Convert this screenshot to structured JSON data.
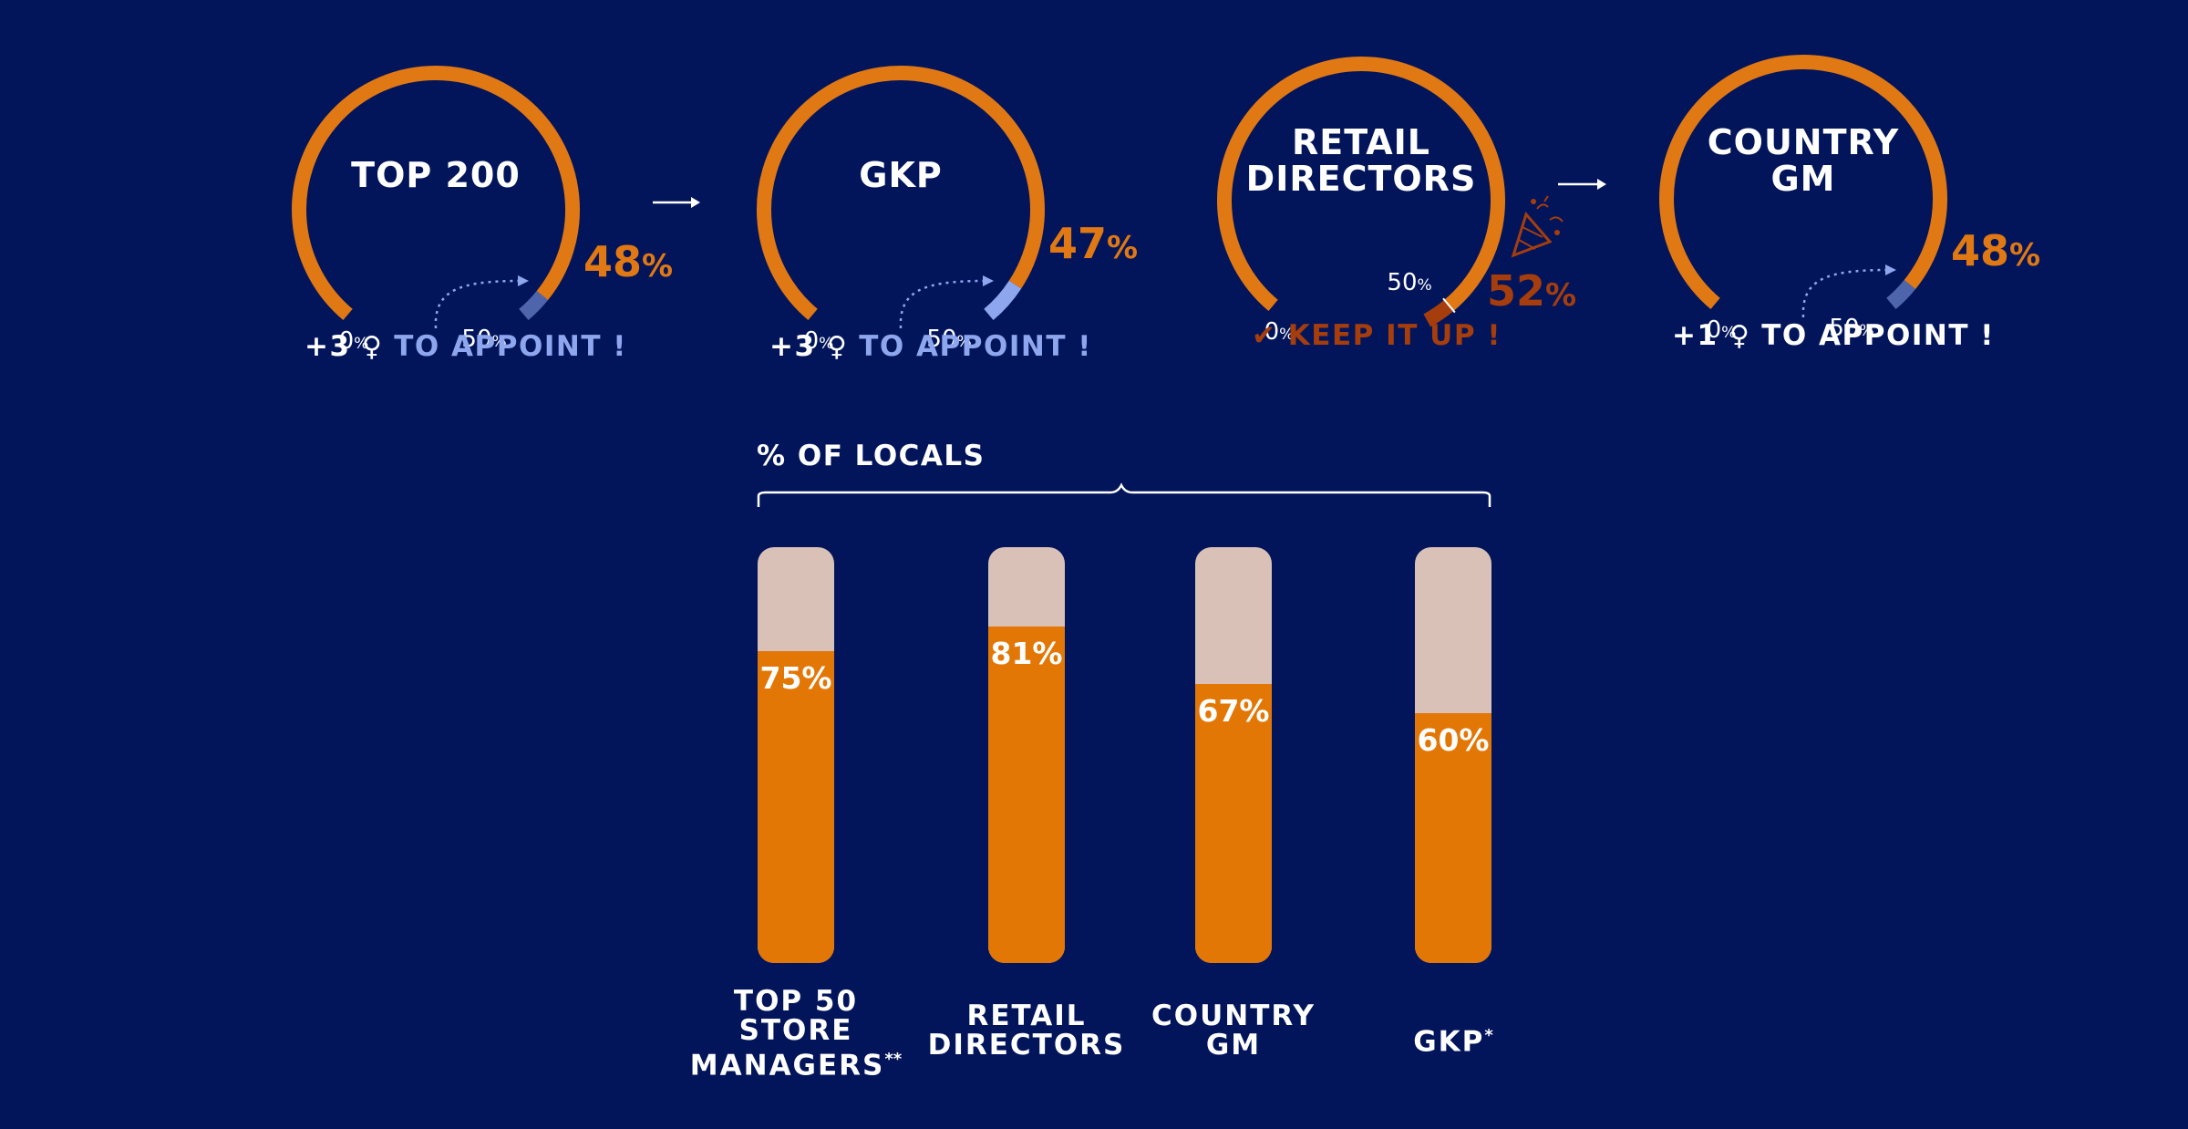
{
  "colors": {
    "background": "#02155a",
    "gauge_orange": "#e07814",
    "gauge_blue": "#8ea6ee",
    "gauge_dark_orange": "#a53d0d",
    "bar_fill": "#e37706",
    "bar_track": "#d9c1b8",
    "white": "#ffffff"
  },
  "gauges": [
    {
      "title_lines": [
        "TOP 200"
      ],
      "value": 48,
      "value_text": "48",
      "zero_label": "0",
      "half_label": "50",
      "action": {
        "prefix": "+3",
        "text": "TO APPOINT !",
        "color": "#8ea6ee"
      },
      "status": "below-target"
    },
    {
      "title_lines": [
        "GKP"
      ],
      "value": 47,
      "value_text": "47",
      "zero_label": "0",
      "half_label": "50",
      "action": {
        "prefix": "+3",
        "text": "TO APPOINT !",
        "color": "#8ea6ee"
      },
      "status": "below-target"
    },
    {
      "title_lines": [
        "RETAIL",
        "DIRECTORS"
      ],
      "value": 52,
      "value_text": "52",
      "zero_label": "0",
      "half_label": "50",
      "action": {
        "prefix": "",
        "text": "KEEP IT UP !",
        "color": "#a53d0d"
      },
      "status": "above-target"
    },
    {
      "title_lines": [
        "COUNTRY",
        "GM"
      ],
      "value": 48,
      "value_text": "48",
      "zero_label": "0",
      "half_label": "50",
      "action": {
        "prefix": "+1",
        "text": "TO APPOINT !",
        "color": "#ffffff"
      },
      "status": "below-target"
    }
  ],
  "symbols": {
    "percent": "%",
    "female": "♀",
    "check": "✔"
  },
  "locals_title": "% OF LOCALS",
  "chart_data": {
    "type": "bar",
    "title": "% OF LOCALS",
    "categories": [
      "TOP 50 STORE MANAGERS**",
      "RETAIL DIRECTORS",
      "COUNTRY GM",
      "GKP*"
    ],
    "category_lines": [
      [
        "TOP 50",
        "STORE",
        "MANAGERS"
      ],
      [
        "RETAIL",
        "DIRECTORS"
      ],
      [
        "COUNTRY",
        "GM"
      ],
      [
        "GKP"
      ]
    ],
    "category_marks": [
      "**",
      "",
      "",
      "*"
    ],
    "values": [
      75,
      81,
      67,
      60
    ],
    "value_labels": [
      "75%",
      "81%",
      "67%",
      "60%"
    ],
    "ylim": [
      0,
      100
    ],
    "grid": false
  }
}
